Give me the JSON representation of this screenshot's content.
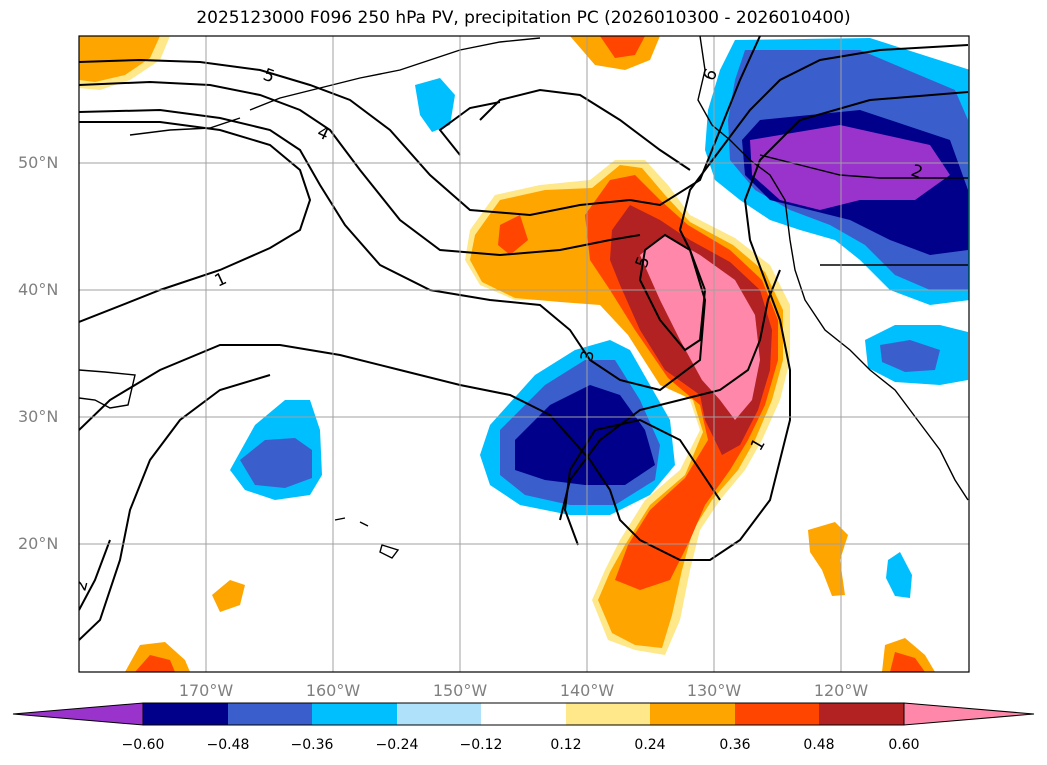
{
  "title": "2025123000 F096 250 hPa PV, precipitation PC (2026010300 - 2026010400)",
  "map": {
    "latitude_labels": [
      "50°N",
      "40°N",
      "30°N",
      "20°N"
    ],
    "longitude_labels": [
      "170°W",
      "160°W",
      "150°W",
      "140°W",
      "130°W",
      "120°W"
    ],
    "pv_contour_labels": [
      "5",
      "4",
      "1",
      "5",
      "3",
      "1",
      "2",
      "2",
      "6"
    ],
    "grid": true
  },
  "colorbar": {
    "ticks": [
      "−0.60",
      "−0.48",
      "−0.36",
      "−0.24",
      "−0.12",
      "0.12",
      "0.24",
      "0.36",
      "0.48",
      "0.60"
    ],
    "colors": [
      "#9933cc",
      "#00008b",
      "#3a5fcd",
      "#00bfff",
      "#afe1fa",
      "#ffffff",
      "#ffe88a",
      "#ffa500",
      "#ff4500",
      "#b22222",
      "#ff88aa"
    ],
    "extend": "both"
  }
}
